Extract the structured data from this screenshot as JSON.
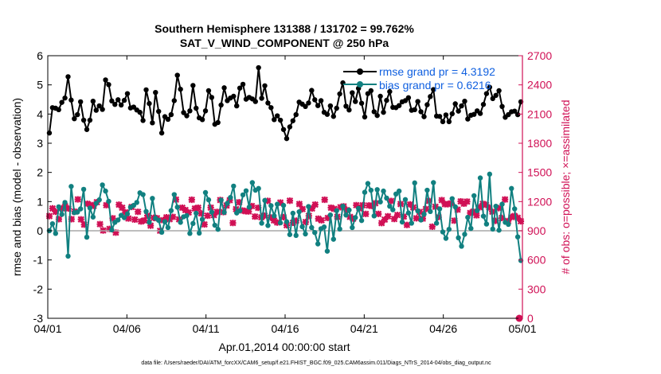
{
  "chart_data": {
    "type": "line",
    "title": "Southern Hemisphere 131388 / 131702 = 99.762%",
    "subtitle": "SAT_V_WIND_COMPONENT @ 250 hPa",
    "xlabel": "Apr.01,2014 00:00:00 start",
    "ylabel_left": "rmse and bias (model - observation)",
    "ylabel_right": "# of obs: o=possible; ×=assimilated",
    "footer": "data file: /Users/raeder/DAI/ATM_forcXX/CAM6_setup/f.e21.FHIST_BGC.f09_025.CAM6assim.011/Diags_NTrS_2014-04/obs_diag_output.nc",
    "x_ticks": [
      "04/01",
      "04/06",
      "04/11",
      "04/16",
      "04/21",
      "04/26",
      "05/01"
    ],
    "x_range_days": [
      0,
      30
    ],
    "ylim_left": [
      -3,
      6
    ],
    "y_ticks_left": [
      "-3",
      "-2",
      "-1",
      "0",
      "1",
      "2",
      "3",
      "4",
      "5",
      "6"
    ],
    "ylim_right": [
      0,
      2700
    ],
    "y_ticks_right": [
      "0",
      "300",
      "600",
      "900",
      "1200",
      "1500",
      "1800",
      "2100",
      "2400",
      "2700"
    ],
    "grid": false,
    "legend_position": "top-right",
    "colors": {
      "rmse": "#000000",
      "bias": "#118080",
      "obs": "#d01055",
      "zero_line": "#a8a8a8",
      "right_axis": "#d01055",
      "legend_text": "#1060e0"
    },
    "series": [
      {
        "name": "rmse grand pr = 4.3192",
        "axis": "left",
        "values": [
          3.35,
          4.22,
          4.2,
          4.15,
          4.4,
          4.55,
          5.28,
          4.48,
          3.84,
          3.98,
          4.42,
          3.79,
          3.47,
          3.79,
          4.44,
          4.13,
          4.28,
          4.16,
          5.17,
          5.01,
          4.45,
          4.33,
          4.49,
          4.31,
          4.47,
          4.7,
          4.21,
          4.24,
          4.14,
          4.06,
          3.78,
          4.83,
          4.36,
          3.7,
          4.74,
          4.09,
          3.35,
          3.91,
          3.82,
          3.98,
          4.46,
          5.33,
          4.85,
          4.05,
          3.94,
          4.11,
          4.98,
          4.2,
          3.87,
          3.81,
          4.11,
          4.8,
          4.57,
          3.65,
          3.71,
          4.31,
          4.9,
          4.46,
          4.55,
          4.61,
          4.28,
          4.89,
          5.02,
          4.51,
          4.57,
          4.52,
          4.43,
          5.59,
          4.54,
          4.97,
          4.38,
          4.22,
          3.81,
          3.94,
          3.79,
          3.47,
          3.16,
          3.56,
          3.77,
          3.98,
          4.41,
          4.34,
          4.26,
          4.38,
          4.81,
          4.49,
          4.29,
          4.46,
          4.06,
          3.99,
          4.28,
          3.92,
          4.2,
          4.69,
          5.07,
          4.27,
          4.14,
          4.73,
          4.43,
          4.88,
          4.37,
          3.9,
          4.7,
          4.8,
          4.08,
          3.95,
          4.61,
          4.06,
          4.47,
          4.77,
          4.23,
          4.22,
          4.29,
          4.42,
          4.46,
          4.56,
          4.13,
          4.15,
          4.43,
          4.08,
          3.91,
          4.32,
          4.6,
          4.84,
          3.93,
          3.92,
          3.74,
          3.97,
          3.74,
          4.01,
          4.35,
          4.1,
          4.28,
          4.44,
          3.83,
          3.96,
          3.99,
          4.11,
          4.02,
          4.33,
          4.7,
          4.92,
          4.53,
          4.64,
          4.8,
          4.26,
          3.89,
          3.98,
          4.08,
          4.1,
          3.98,
          4.42
        ]
      },
      {
        "name": "bias grand pr = 0.6216",
        "axis": "left",
        "values": [
          0.0,
          0.24,
          -0.09,
          0.82,
          0.56,
          0.97,
          -0.87,
          1.52,
          0.62,
          0.64,
          0.75,
          1.42,
          -0.22,
          0.78,
          0.47,
          0.94,
          1.06,
          1.57,
          1.36,
          1.01,
          0.03,
          0.29,
          0.37,
          0.53,
          0.45,
          0.58,
          0.81,
          0.87,
          0.97,
          1.3,
          1.24,
          0.66,
          0.29,
          1.11,
          0.43,
          0.36,
          -0.05,
          0.31,
          0.11,
          0.69,
          1.24,
          0.81,
          0.29,
          0.48,
          0.52,
          -0.09,
          0.25,
          0.6,
          -0.08,
          0.39,
          1.31,
          1.06,
          0.64,
          0.19,
          0.05,
          1.05,
          0.63,
          0.94,
          1.14,
          1.53,
          0.61,
          0.69,
          1.23,
          1.37,
          0.81,
          1.65,
          1.39,
          1.45,
          0.26,
          1.04,
          0.18,
          0.86,
          0.51,
          0.91,
          0.27,
          0.87,
          0.31,
          -0.13,
          0.6,
          -0.16,
          0.65,
          0.14,
          -0.11,
          0.83,
          0.11,
          -0.06,
          -0.45,
          0.07,
          0.13,
          -0.7,
          0.54,
          -0.29,
          0.69,
          0.06,
          0.84,
          0.54,
          0.71,
          0.11,
          0.45,
          0.77,
          0.35,
          1.32,
          1.62,
          1.39,
          0.51,
          1.41,
          0.99,
          1.36,
          1.12,
          0.84,
          0.72,
          1.26,
          1.36,
          0.3,
          1.07,
          0.61,
          0.26,
          1.64,
          0.68,
          0.37,
          0.57,
          1.39,
          0.66,
          1.65,
          0.26,
          0.75,
          -0.04,
          -0.26,
          0.05,
          1.1,
          0.82,
          -0.24,
          -0.53,
          -0.12,
          0.46,
          0.08,
          1.2,
          0.69,
          1.81,
          0.5,
          0.23,
          1.94,
          0.06,
          0.84,
          0.02,
          0.91,
          0.29,
          0.22,
          1.45,
          0.75,
          -0.21,
          -1.02
        ]
      },
      {
        "name": "obs assimilated",
        "axis": "right",
        "values": [
          1051,
          1130,
          1095,
          1019,
          1131,
          1152,
          1129,
          1019,
          1097,
          1223,
          1017,
          963,
          1178,
          1165,
          1156,
          1194,
          968,
          903,
          1163,
          919,
          1028,
          881,
          1168,
          1137,
          1090,
          1026,
          1145,
          1015,
          1095,
          996,
          1006,
          1055,
          953,
          1033,
          1029,
          900,
          1009,
          1038,
          1019,
          1043,
          1221,
          1018,
          1137,
          1113,
          1088,
          1219,
          1129,
          1137,
          1078,
          965,
          1055,
          1138,
          1061,
          1094,
          1216,
          1092,
          1159,
          1214,
          980,
          1123,
          1193,
          1108,
          1101,
          1099,
          1154,
          1046,
          1136,
          1038,
          1055,
          1207,
          1036,
          1006,
          985,
          1190,
          1040,
          957,
          1209,
          982,
          1004,
          1175,
          1123,
          990,
          1053,
          1129,
          1169,
          1024,
          1008,
          1219,
          1032,
          1137,
          1125,
          1044,
          1142,
          1151,
          1113,
          1043,
          1024,
          1163,
          1130,
          1162,
          1073,
          1160,
          1155,
          1183,
          1073,
          979,
          1015,
          1049,
          1206,
          1021,
          1062,
          1175,
          1046,
          960,
          1171,
          1140,
          1028,
          1093,
          1025,
          1124,
          1206,
          942,
          1147,
          1041,
          1215,
          1174,
          1174,
          1182,
          1004,
          1117,
          1202,
          1179,
          1200,
          1083,
          1097,
          1059,
          1142,
          1177,
          1166,
          1140,
          1096,
          1002,
          1133,
          1032,
          1222,
          1001,
          1041,
          1052,
          1034,
          998
        ]
      }
    ],
    "annotations": [
      {
        "x_day": 29.8,
        "y_obs": 0,
        "marker": "o",
        "color": "#d01055"
      }
    ]
  }
}
